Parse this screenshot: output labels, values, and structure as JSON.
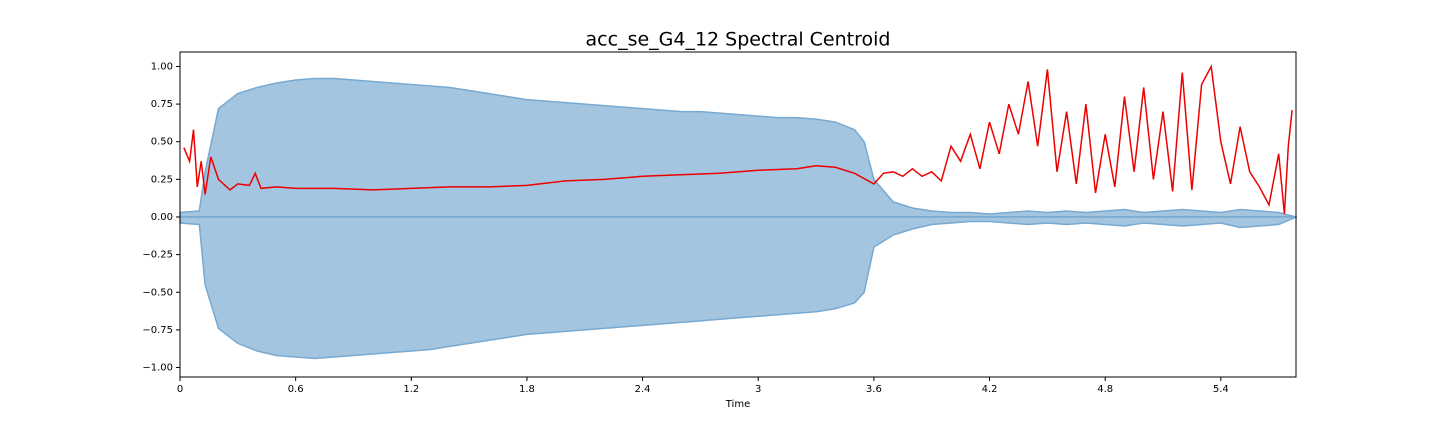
{
  "chart_data": {
    "type": "waveform",
    "title": "acc_se_G4_12 Spectral Centroid",
    "xlabel": "Time",
    "xlim": [
      0,
      5.79
    ],
    "ylim": [
      -1.063,
      1.096
    ],
    "xticks": [
      0,
      0.6,
      1.2,
      1.8,
      2.4,
      3,
      3.6,
      4.2,
      4.8,
      5.4
    ],
    "yticks": [
      {
        "value": 1,
        "label": "1.00"
      },
      {
        "value": 0.75,
        "label": "0.75"
      },
      {
        "value": 0.5,
        "label": "0.50"
      },
      {
        "value": 0.25,
        "label": "0.25"
      },
      {
        "value": 0,
        "label": "0.00"
      },
      {
        "value": -0.25,
        "label": "−0.25"
      },
      {
        "value": -0.5,
        "label": "−0.50"
      },
      {
        "value": -0.75,
        "label": "−0.75"
      },
      {
        "value": -1,
        "label": "−1.00"
      }
    ],
    "waveform": {
      "color": "#a3c5e0",
      "edge_color": "#78a9d1",
      "x": [
        0,
        0.1,
        0.13,
        0.2,
        0.3,
        0.4,
        0.5,
        0.6,
        0.7,
        0.8,
        0.9,
        1.0,
        1.1,
        1.2,
        1.3,
        1.4,
        1.5,
        1.6,
        1.7,
        1.8,
        1.9,
        2.0,
        2.1,
        2.2,
        2.3,
        2.4,
        2.5,
        2.6,
        2.7,
        2.8,
        2.9,
        3.0,
        3.1,
        3.2,
        3.3,
        3.4,
        3.5,
        3.55,
        3.6,
        3.7,
        3.8,
        3.9,
        4.0,
        4.1,
        4.2,
        4.3,
        4.4,
        4.5,
        4.6,
        4.7,
        4.8,
        4.9,
        5.0,
        5.1,
        5.2,
        5.3,
        5.4,
        5.5,
        5.6,
        5.7,
        5.79
      ],
      "upper": [
        0.03,
        0.04,
        0.3,
        0.72,
        0.82,
        0.86,
        0.89,
        0.91,
        0.92,
        0.92,
        0.91,
        0.9,
        0.89,
        0.88,
        0.87,
        0.86,
        0.84,
        0.82,
        0.8,
        0.78,
        0.77,
        0.76,
        0.75,
        0.74,
        0.73,
        0.72,
        0.71,
        0.7,
        0.7,
        0.69,
        0.68,
        0.67,
        0.66,
        0.66,
        0.65,
        0.63,
        0.58,
        0.5,
        0.25,
        0.1,
        0.06,
        0.04,
        0.03,
        0.03,
        0.02,
        0.03,
        0.04,
        0.03,
        0.04,
        0.03,
        0.04,
        0.05,
        0.03,
        0.04,
        0.05,
        0.04,
        0.03,
        0.05,
        0.04,
        0.03,
        0
      ],
      "lower": [
        -0.04,
        -0.05,
        -0.45,
        -0.74,
        -0.84,
        -0.89,
        -0.92,
        -0.93,
        -0.94,
        -0.93,
        -0.92,
        -0.91,
        -0.9,
        -0.89,
        -0.88,
        -0.86,
        -0.84,
        -0.82,
        -0.8,
        -0.78,
        -0.77,
        -0.76,
        -0.75,
        -0.74,
        -0.73,
        -0.72,
        -0.71,
        -0.7,
        -0.69,
        -0.68,
        -0.67,
        -0.66,
        -0.65,
        -0.64,
        -0.63,
        -0.61,
        -0.57,
        -0.5,
        -0.2,
        -0.12,
        -0.08,
        -0.05,
        -0.04,
        -0.03,
        -0.03,
        -0.04,
        -0.05,
        -0.04,
        -0.05,
        -0.04,
        -0.05,
        -0.06,
        -0.04,
        -0.05,
        -0.06,
        -0.05,
        -0.04,
        -0.07,
        -0.06,
        -0.05,
        0
      ]
    },
    "centroid": {
      "color": "#ee0000",
      "x": [
        0.02,
        0.05,
        0.07,
        0.09,
        0.11,
        0.13,
        0.16,
        0.2,
        0.26,
        0.3,
        0.36,
        0.39,
        0.42,
        0.5,
        0.6,
        0.8,
        1.0,
        1.2,
        1.4,
        1.6,
        1.8,
        2.0,
        2.2,
        2.4,
        2.6,
        2.8,
        3.0,
        3.2,
        3.3,
        3.4,
        3.5,
        3.6,
        3.65,
        3.7,
        3.75,
        3.8,
        3.85,
        3.9,
        3.95,
        4.0,
        4.05,
        4.1,
        4.15,
        4.2,
        4.25,
        4.3,
        4.35,
        4.4,
        4.45,
        4.5,
        4.55,
        4.6,
        4.65,
        4.7,
        4.75,
        4.8,
        4.85,
        4.9,
        4.95,
        5.0,
        5.05,
        5.1,
        5.15,
        5.2,
        5.25,
        5.3,
        5.35,
        5.4,
        5.45,
        5.5,
        5.55,
        5.6,
        5.65,
        5.7,
        5.73,
        5.75,
        5.77
      ],
      "values": [
        0.46,
        0.37,
        0.58,
        0.2,
        0.37,
        0.15,
        0.4,
        0.25,
        0.18,
        0.22,
        0.21,
        0.29,
        0.19,
        0.2,
        0.19,
        0.19,
        0.18,
        0.19,
        0.2,
        0.2,
        0.21,
        0.24,
        0.25,
        0.27,
        0.28,
        0.29,
        0.31,
        0.32,
        0.34,
        0.33,
        0.29,
        0.22,
        0.29,
        0.3,
        0.27,
        0.32,
        0.27,
        0.3,
        0.24,
        0.47,
        0.37,
        0.55,
        0.32,
        0.63,
        0.42,
        0.75,
        0.55,
        0.9,
        0.47,
        0.98,
        0.3,
        0.7,
        0.22,
        0.75,
        0.16,
        0.55,
        0.2,
        0.8,
        0.3,
        0.86,
        0.25,
        0.7,
        0.17,
        0.96,
        0.18,
        0.88,
        1.0,
        0.5,
        0.22,
        0.6,
        0.3,
        0.2,
        0.08,
        0.42,
        0.02,
        0.47,
        0.71
      ]
    }
  }
}
